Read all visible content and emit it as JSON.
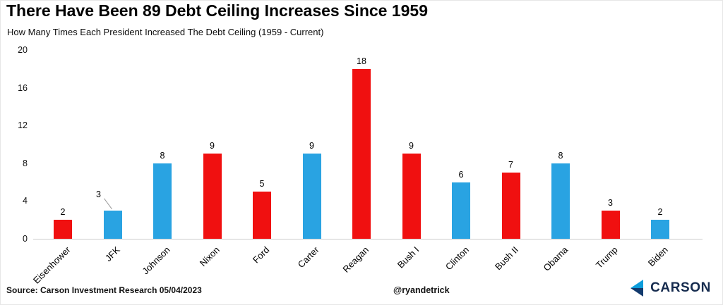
{
  "header": {
    "title": "There Have Been 89 Debt Ceiling Increases Since 1959",
    "subtitle": "How Many Times Each President Increased The Debt Ceiling (1959 - Current)"
  },
  "footer": {
    "source": "Source: Carson Investment Research 05/04/2023",
    "handle": "@ryandetrick",
    "logo_text": "CARSON"
  },
  "colors": {
    "republican": "#f01010",
    "democrat": "#29a3e2",
    "axis_line": "#cccccc",
    "leader_line": "#9a9a9a",
    "logo_light_blue": "#0d9ddb",
    "logo_dark_blue": "#123a6d",
    "logo_text_navy": "#152b4e"
  },
  "chart_data": {
    "type": "bar",
    "title": "There Have Been 89 Debt Ceiling Increases Since 1959",
    "subtitle": "How Many Times Each President Increased The Debt Ceiling (1959 - Current)",
    "categories": [
      "Eisenhower",
      "JFK",
      "Johnson",
      "Nixon",
      "Ford",
      "Carter",
      "Reagan",
      "Bush I",
      "Clinton",
      "Bush II",
      "Obama",
      "Trump",
      "Biden"
    ],
    "values": [
      2,
      3,
      8,
      9,
      5,
      9,
      18,
      9,
      6,
      7,
      8,
      3,
      2
    ],
    "parties": [
      "R",
      "D",
      "D",
      "R",
      "R",
      "D",
      "R",
      "R",
      "D",
      "R",
      "D",
      "R",
      "D"
    ],
    "total": 89,
    "xlabel": "",
    "ylabel": "",
    "ylim": [
      0,
      20
    ],
    "yticks": [
      0,
      4,
      8,
      12,
      16,
      20
    ],
    "grid": false,
    "legend": "none",
    "bar_color_rule": "Republican presidents red, Democratic presidents blue",
    "annotations": [
      {
        "category": "JFK",
        "label": "3",
        "label_dx": -20,
        "label_dy": -12,
        "leader_line": true
      }
    ]
  }
}
